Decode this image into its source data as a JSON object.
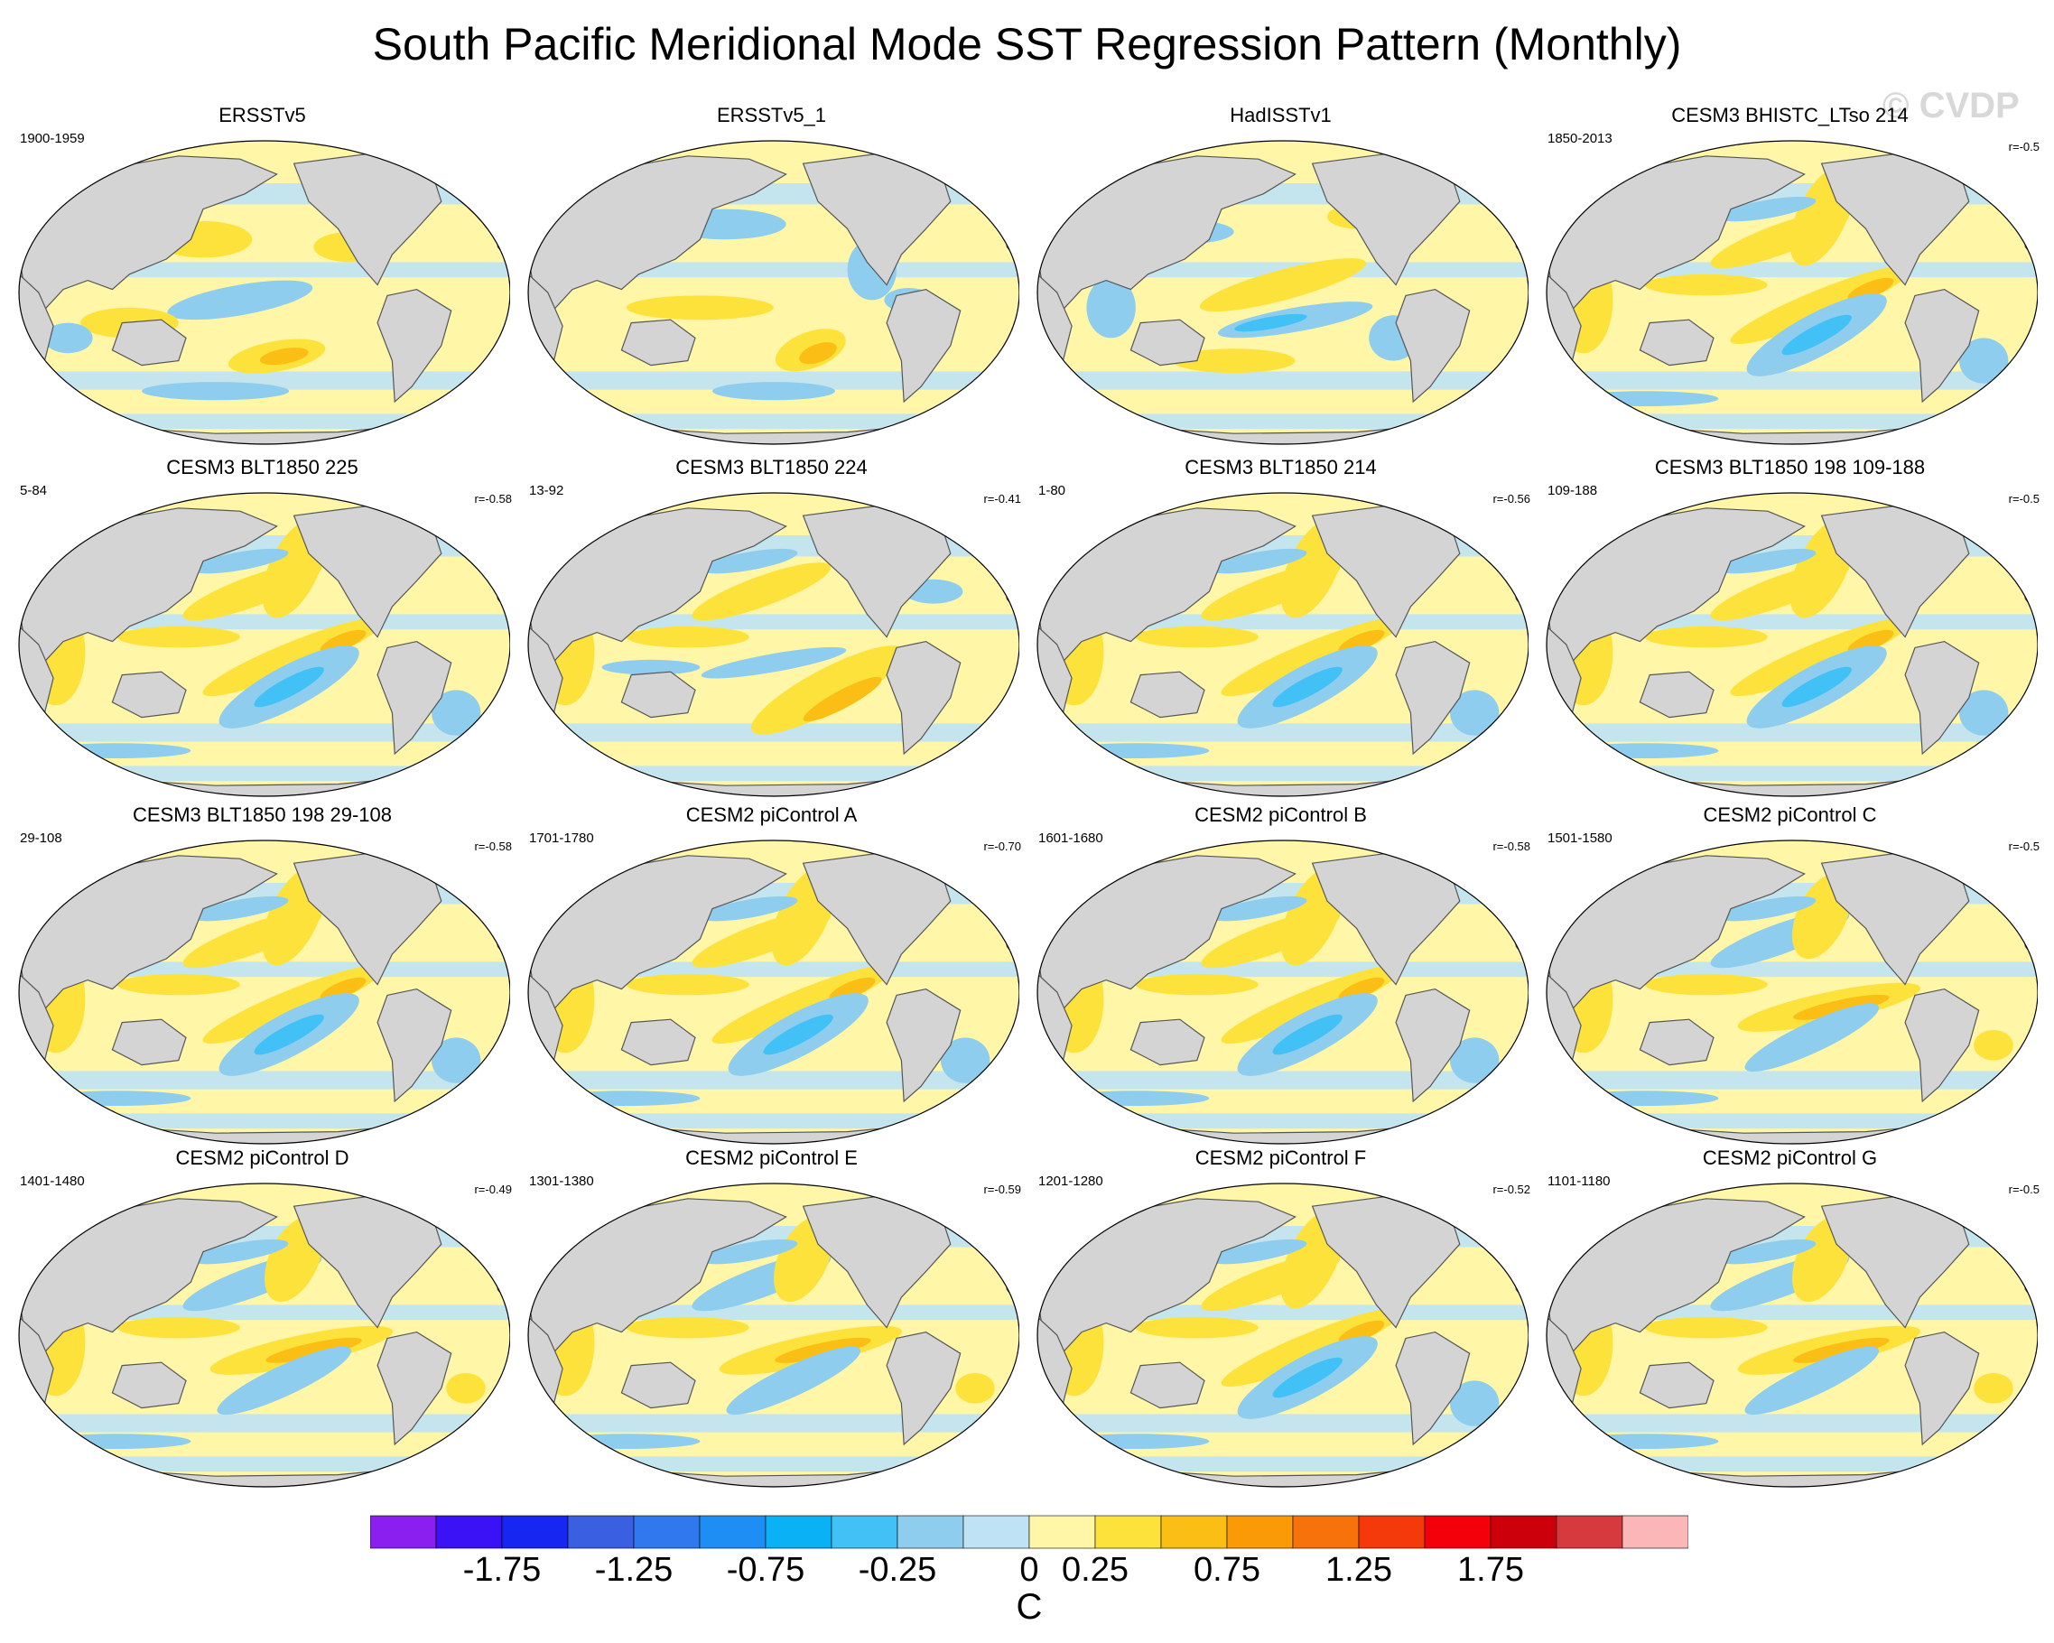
{
  "figure": {
    "title": "South Pacific Meridional Mode SST Regression Pattern (Monthly)",
    "watermark": "© CVDP"
  },
  "panels": [
    {
      "title": "ERSSTv5",
      "years": "1900-1959",
      "r": "",
      "pattern": "obs1"
    },
    {
      "title": "ERSSTv5_1",
      "years": "",
      "r": "",
      "pattern": "obs2"
    },
    {
      "title": "HadISSTv1",
      "years": "",
      "r": "",
      "pattern": "obs3"
    },
    {
      "title": "CESM3 BHISTC_LTso 214",
      "years": "1850-2013",
      "r": "r=-0.5",
      "pattern": "neg"
    },
    {
      "title": "CESM3 BLT1850 225",
      "years": "5-84",
      "r": "r=-0.58",
      "pattern": "neg"
    },
    {
      "title": "CESM3 BLT1850 224",
      "years": "13-92",
      "r": "r=-0.41",
      "pattern": "neg2"
    },
    {
      "title": "CESM3 BLT1850 214",
      "years": "1-80",
      "r": "r=-0.56",
      "pattern": "neg"
    },
    {
      "title": "CESM3 BLT1850 198 109-188",
      "years": "109-188",
      "r": "r=-0.5",
      "pattern": "neg"
    },
    {
      "title": "CESM3 BLT1850 198 29-108",
      "years": "29-108",
      "r": "r=-0.58",
      "pattern": "neg"
    },
    {
      "title": "CESM2 piControl A",
      "years": "1701-1780",
      "r": "r=-0.70",
      "pattern": "neg"
    },
    {
      "title": "CESM2 piControl B",
      "years": "1601-1680",
      "r": "r=-0.58",
      "pattern": "neg"
    },
    {
      "title": "CESM2 piControl C",
      "years": "1501-1580",
      "r": "r=-0.5",
      "pattern": "pos"
    },
    {
      "title": "CESM2 piControl D",
      "years": "1401-1480",
      "r": "r=-0.49",
      "pattern": "pos"
    },
    {
      "title": "CESM2 piControl E",
      "years": "1301-1380",
      "r": "r=-0.59",
      "pattern": "pos"
    },
    {
      "title": "CESM2 piControl F",
      "years": "1201-1280",
      "r": "r=-0.52",
      "pattern": "neg"
    },
    {
      "title": "CESM2 piControl G",
      "years": "1101-1180",
      "r": "r=-0.5",
      "pattern": "pos"
    }
  ],
  "colors": {
    "land": "#d4d4d4",
    "coast": "#555555",
    "cb": [
      "#8b1ff0",
      "#3a12f5",
      "#1826f2",
      "#3a5fe0",
      "#2f78ee",
      "#1e8ef5",
      "#0bb1f5",
      "#41c1f6",
      "#8ecdee",
      "#bfe3f5",
      "#fff6a8",
      "#fde23c",
      "#fbbe14",
      "#f99a06",
      "#f7720a",
      "#f43a0b",
      "#f3000b",
      "#cc000a",
      "#d63a3e",
      "#fbb7b8"
    ]
  },
  "colorbar": {
    "labels": [
      "-1.75",
      "-1.25",
      "-0.75",
      "-0.25",
      "0",
      "0.25",
      "0.75",
      "1.25",
      "1.75"
    ],
    "label_boundaries": [
      2,
      4,
      6,
      8,
      10,
      11,
      13,
      15,
      17
    ],
    "units": "C"
  }
}
